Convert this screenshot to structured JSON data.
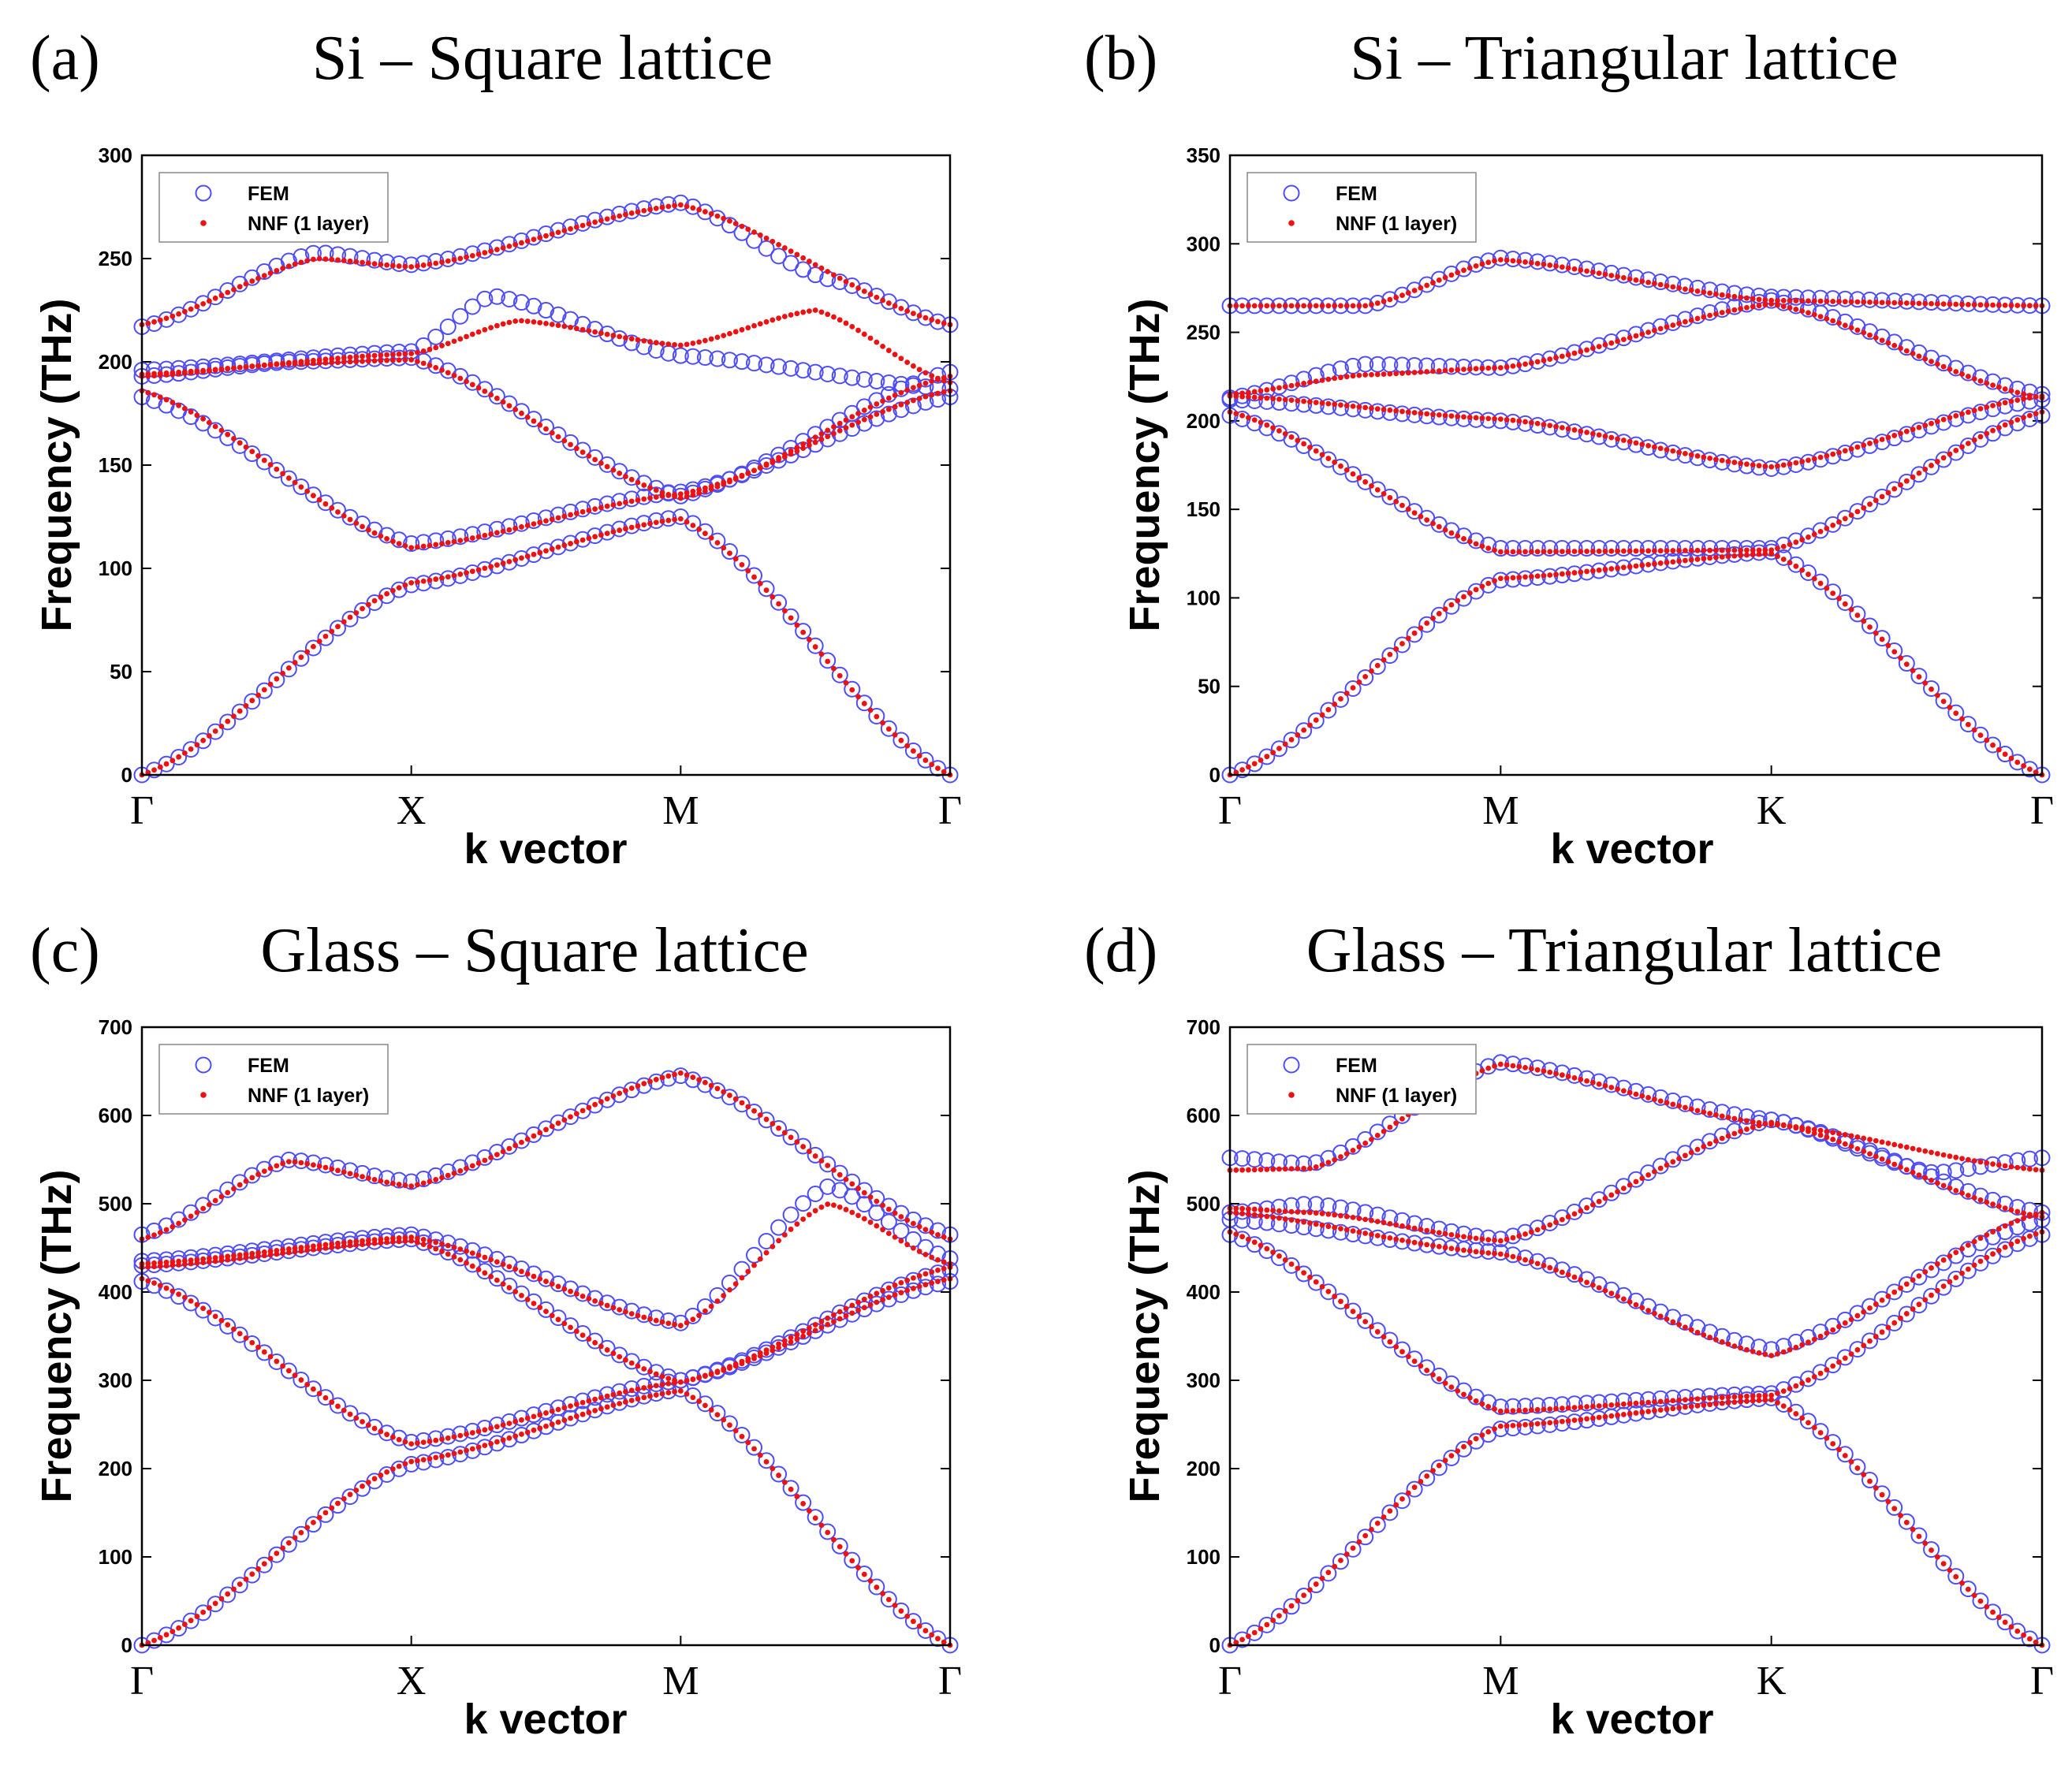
{
  "chart_data": [
    {
      "type": "scatter",
      "id": "a",
      "panel_label": "(a)",
      "title": "Si – Square lattice",
      "xlabel": "k vector",
      "ylabel": "Frequency (THz)",
      "ylim": [
        0,
        300
      ],
      "yticks": [
        0,
        50,
        100,
        150,
        200,
        250,
        300
      ],
      "kpoints": [
        "Γ",
        "X",
        "M",
        "Γ"
      ],
      "kpoint_positions": [
        0,
        1,
        2,
        3
      ],
      "legend": [
        "FEM",
        "NNF (1 layer)"
      ],
      "legend_position": "top-left",
      "series": [
        {
          "name": "FEM",
          "bands": [
            {
              "x": [
                0,
                1,
                2,
                3
              ],
              "y": [
                0,
                92,
                125,
                0
              ]
            },
            {
              "x": [
                0,
                1,
                2,
                3
              ],
              "y": [
                183,
                112,
                137,
                183
              ]
            },
            {
              "x": [
                0,
                0.55,
                1,
                2,
                3
              ],
              "y": [
                193,
                200,
                202,
                135,
                195
              ]
            },
            {
              "x": [
                0,
                1,
                1.3,
                2,
                3
              ],
              "y": [
                196,
                205,
                232,
                203,
                187
              ]
            },
            {
              "x": [
                0,
                0.65,
                1,
                2,
                2.55,
                3
              ],
              "y": [
                217,
                253,
                247,
                277,
                240,
                218
              ]
            }
          ]
        },
        {
          "name": "NNF (1 layer)",
          "bands": [
            {
              "x": [
                0,
                1,
                2,
                3
              ],
              "y": [
                0,
                93,
                124,
                0
              ]
            },
            {
              "x": [
                0,
                1,
                2,
                3
              ],
              "y": [
                186,
                110,
                136,
                186
              ]
            },
            {
              "x": [
                0,
                0.55,
                1,
                2,
                3
              ],
              "y": [
                193,
                199,
                201,
                134,
                193
              ]
            },
            {
              "x": [
                0,
                1,
                1.4,
                2,
                2.5,
                3
              ],
              "y": [
                194,
                204,
                220,
                208,
                225,
                190
              ]
            },
            {
              "x": [
                0,
                0.65,
                1,
                2,
                3
              ],
              "y": [
                218,
                250,
                246,
                276,
                218
              ]
            }
          ]
        }
      ]
    },
    {
      "type": "scatter",
      "id": "b",
      "panel_label": "(b)",
      "title": "Si – Triangular lattice",
      "xlabel": "k vector",
      "ylabel": "Frequency (THz)",
      "ylim": [
        0,
        350
      ],
      "yticks": [
        0,
        50,
        100,
        150,
        200,
        250,
        300,
        350
      ],
      "kpoints": [
        "Γ",
        "M",
        "K",
        "Γ"
      ],
      "kpoint_positions": [
        0,
        1,
        2,
        3
      ],
      "legend": [
        "FEM",
        "NNF (1 layer)"
      ],
      "legend_position": "top-left",
      "series": [
        {
          "name": "FEM",
          "bands": [
            {
              "x": [
                0,
                1,
                2,
                3
              ],
              "y": [
                0,
                110,
                126,
                0
              ]
            },
            {
              "x": [
                0,
                1,
                2,
                3
              ],
              "y": [
                203,
                128,
                128,
                203
              ]
            },
            {
              "x": [
                0,
                1,
                2,
                3
              ],
              "y": [
                212,
                200,
                173,
                212
              ]
            },
            {
              "x": [
                0,
                0.5,
                1,
                2,
                3
              ],
              "y": [
                213,
                232,
                230,
                268,
                215
              ]
            },
            {
              "x": [
                0,
                0.5,
                1,
                2,
                3
              ],
              "y": [
                265,
                265,
                292,
                270,
                265
              ]
            }
          ]
        },
        {
          "name": "NNF (1 layer)",
          "bands": [
            {
              "x": [
                0,
                1,
                2,
                3
              ],
              "y": [
                0,
                111,
                125,
                0
              ]
            },
            {
              "x": [
                0,
                1,
                2,
                3
              ],
              "y": [
                205,
                126,
                127,
                205
              ]
            },
            {
              "x": [
                0,
                1,
                2,
                3
              ],
              "y": [
                214,
                201,
                174,
                214
              ]
            },
            {
              "x": [
                0,
                0.5,
                1,
                2,
                3
              ],
              "y": [
                215,
                226,
                230,
                266,
                213
              ]
            },
            {
              "x": [
                0,
                0.5,
                1,
                2,
                3
              ],
              "y": [
                265,
                265,
                291,
                268,
                265
              ]
            }
          ]
        }
      ]
    },
    {
      "type": "scatter",
      "id": "c",
      "panel_label": "(c)",
      "title": "Glass – Square lattice",
      "xlabel": "k vector",
      "ylabel": "Frequency (THz)",
      "ylim": [
        0,
        700
      ],
      "yticks": [
        0,
        100,
        200,
        300,
        400,
        500,
        600,
        700
      ],
      "kpoints": [
        "Γ",
        "X",
        "M",
        "Γ"
      ],
      "kpoint_positions": [
        0,
        1,
        2,
        3
      ],
      "legend": [
        "FEM",
        "NNF (1 layer)"
      ],
      "legend_position": "top-left",
      "series": [
        {
          "name": "FEM",
          "bands": [
            {
              "x": [
                0,
                1,
                2,
                3
              ],
              "y": [
                0,
                205,
                290,
                0
              ]
            },
            {
              "x": [
                0,
                1,
                2,
                3
              ],
              "y": [
                412,
                230,
                300,
                412
              ]
            },
            {
              "x": [
                0,
                1,
                2,
                3
              ],
              "y": [
                430,
                460,
                300,
                425
              ]
            },
            {
              "x": [
                0,
                1,
                2,
                2.55,
                3
              ],
              "y": [
                435,
                465,
                365,
                520,
                438
              ]
            },
            {
              "x": [
                0,
                0.55,
                1,
                2,
                3
              ],
              "y": [
                465,
                550,
                525,
                645,
                465
              ]
            }
          ]
        },
        {
          "name": "NNF (1 layer)",
          "bands": [
            {
              "x": [
                0,
                1,
                2,
                3
              ],
              "y": [
                0,
                208,
                288,
                0
              ]
            },
            {
              "x": [
                0,
                1,
                2,
                3
              ],
              "y": [
                415,
                228,
                298,
                415
              ]
            },
            {
              "x": [
                0,
                1,
                2,
                3
              ],
              "y": [
                428,
                458,
                298,
                428
              ]
            },
            {
              "x": [
                0,
                1,
                2,
                2.55,
                3
              ],
              "y": [
                432,
                462,
                362,
                500,
                432
              ]
            },
            {
              "x": [
                0,
                0.55,
                1,
                2,
                3
              ],
              "y": [
                460,
                548,
                520,
                648,
                460
              ]
            }
          ]
        }
      ]
    },
    {
      "type": "scatter",
      "id": "d",
      "panel_label": "(d)",
      "title": "Glass – Triangular lattice",
      "xlabel": "k vector",
      "ylabel": "Frequency (THz)",
      "ylim": [
        0,
        700
      ],
      "yticks": [
        0,
        100,
        200,
        300,
        400,
        500,
        600,
        700
      ],
      "kpoints": [
        "Γ",
        "M",
        "K",
        "Γ"
      ],
      "kpoint_positions": [
        0,
        1,
        2,
        3
      ],
      "legend": [
        "FEM",
        "NNF (1 layer)"
      ],
      "legend_position": "top-left",
      "series": [
        {
          "name": "FEM",
          "bands": [
            {
              "x": [
                0,
                1,
                2,
                3
              ],
              "y": [
                0,
                245,
                280,
                0
              ]
            },
            {
              "x": [
                0,
                1,
                2,
                3
              ],
              "y": [
                465,
                270,
                285,
                465
              ]
            },
            {
              "x": [
                0,
                1,
                2,
                3
              ],
              "y": [
                482,
                445,
                335,
                482
              ]
            },
            {
              "x": [
                0,
                0.3,
                1,
                2,
                3
              ],
              "y": [
                490,
                500,
                460,
                595,
                490
              ]
            },
            {
              "x": [
                0,
                0.3,
                1,
                2,
                2.6,
                3
              ],
              "y": [
                552,
                545,
                660,
                595,
                535,
                552
              ]
            }
          ]
        },
        {
          "name": "NNF (1 layer)",
          "bands": [
            {
              "x": [
                0,
                1,
                2,
                3
              ],
              "y": [
                0,
                248,
                278,
                0
              ]
            },
            {
              "x": [
                0,
                1,
                2,
                3
              ],
              "y": [
                468,
                265,
                283,
                468
              ]
            },
            {
              "x": [
                0,
                1,
                2,
                3
              ],
              "y": [
                490,
                443,
                328,
                490
              ]
            },
            {
              "x": [
                0,
                0.3,
                1,
                2,
                3
              ],
              "y": [
                495,
                490,
                458,
                592,
                485
              ]
            },
            {
              "x": [
                0,
                0.3,
                1,
                2,
                3
              ],
              "y": [
                538,
                540,
                658,
                590,
                538
              ]
            }
          ]
        }
      ]
    }
  ]
}
